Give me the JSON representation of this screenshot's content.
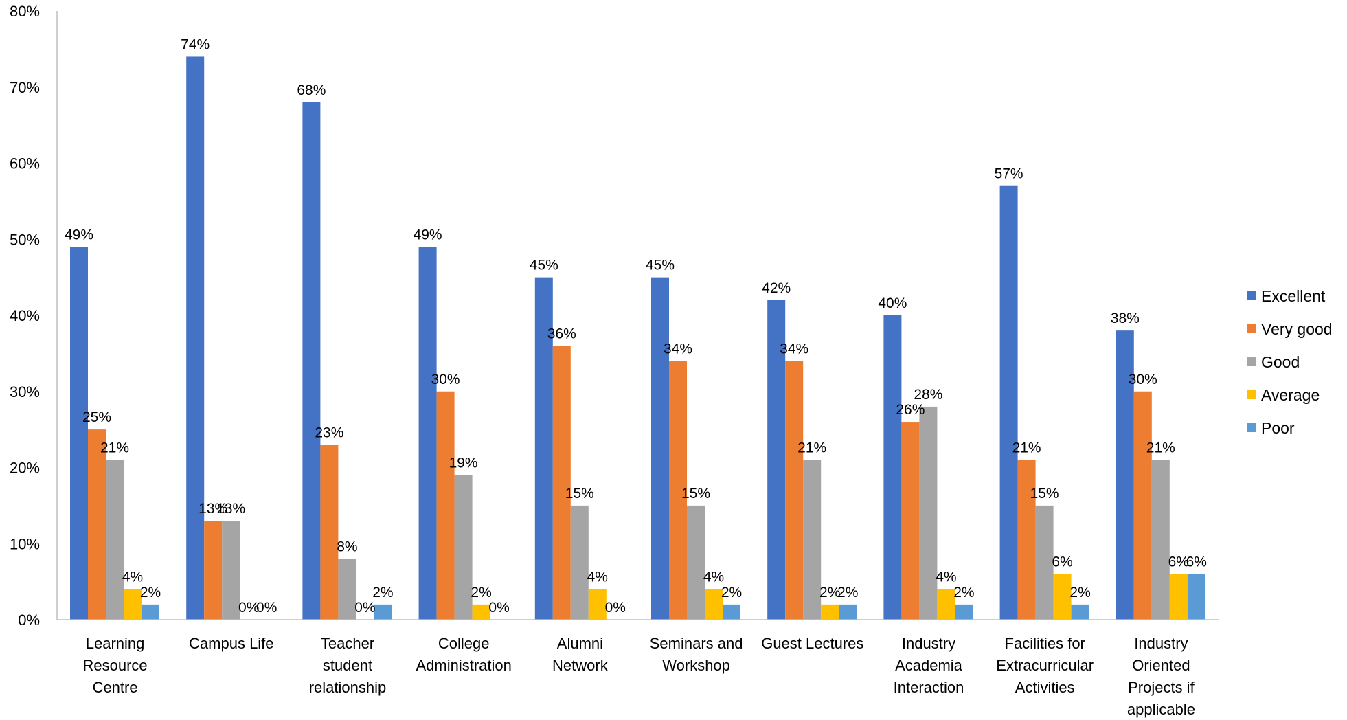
{
  "chart_data": {
    "type": "bar",
    "title": "",
    "xlabel": "",
    "ylabel": "",
    "ylim": [
      0,
      80
    ],
    "ytick_step": 10,
    "y_tick_suffix": "%",
    "grid": false,
    "legend_position": "right",
    "categories": [
      "Learning Resource Centre",
      "Campus Life",
      "Teacher student relationship",
      "College Administration",
      "Alumni Network",
      "Seminars and Workshop",
      "Guest Lectures",
      "Industry Academia Interaction",
      "Facilities for Extracurricular Activities",
      "Industry Oriented Projects if applicable"
    ],
    "category_label_lines": [
      [
        "Learning",
        "Resource",
        "Centre"
      ],
      [
        "Campus Life"
      ],
      [
        "Teacher",
        "student",
        "relationship"
      ],
      [
        "College",
        "Administration"
      ],
      [
        "Alumni",
        "Network"
      ],
      [
        "Seminars and",
        "Workshop"
      ],
      [
        "Guest Lectures"
      ],
      [
        "Industry",
        "Academia",
        "Interaction"
      ],
      [
        "Facilities for",
        "Extracurricular",
        "Activities"
      ],
      [
        "Industry",
        "Oriented",
        "Projects if",
        "applicable"
      ]
    ],
    "series": [
      {
        "name": "Excellent",
        "color": "#4472C4",
        "values": [
          49,
          74,
          68,
          49,
          45,
          45,
          42,
          40,
          57,
          38
        ]
      },
      {
        "name": "Very good",
        "color": "#ED7D31",
        "values": [
          25,
          13,
          23,
          30,
          36,
          34,
          34,
          26,
          21,
          30
        ]
      },
      {
        "name": "Good",
        "color": "#A5A5A5",
        "values": [
          21,
          13,
          8,
          19,
          15,
          15,
          21,
          28,
          15,
          21
        ]
      },
      {
        "name": "Average",
        "color": "#FFC000",
        "values": [
          4,
          0,
          0,
          2,
          4,
          4,
          2,
          4,
          6,
          6
        ]
      },
      {
        "name": "Poor",
        "color": "#5B9BD5",
        "values": [
          2,
          0,
          2,
          0,
          0,
          2,
          2,
          2,
          2,
          6
        ]
      }
    ]
  }
}
